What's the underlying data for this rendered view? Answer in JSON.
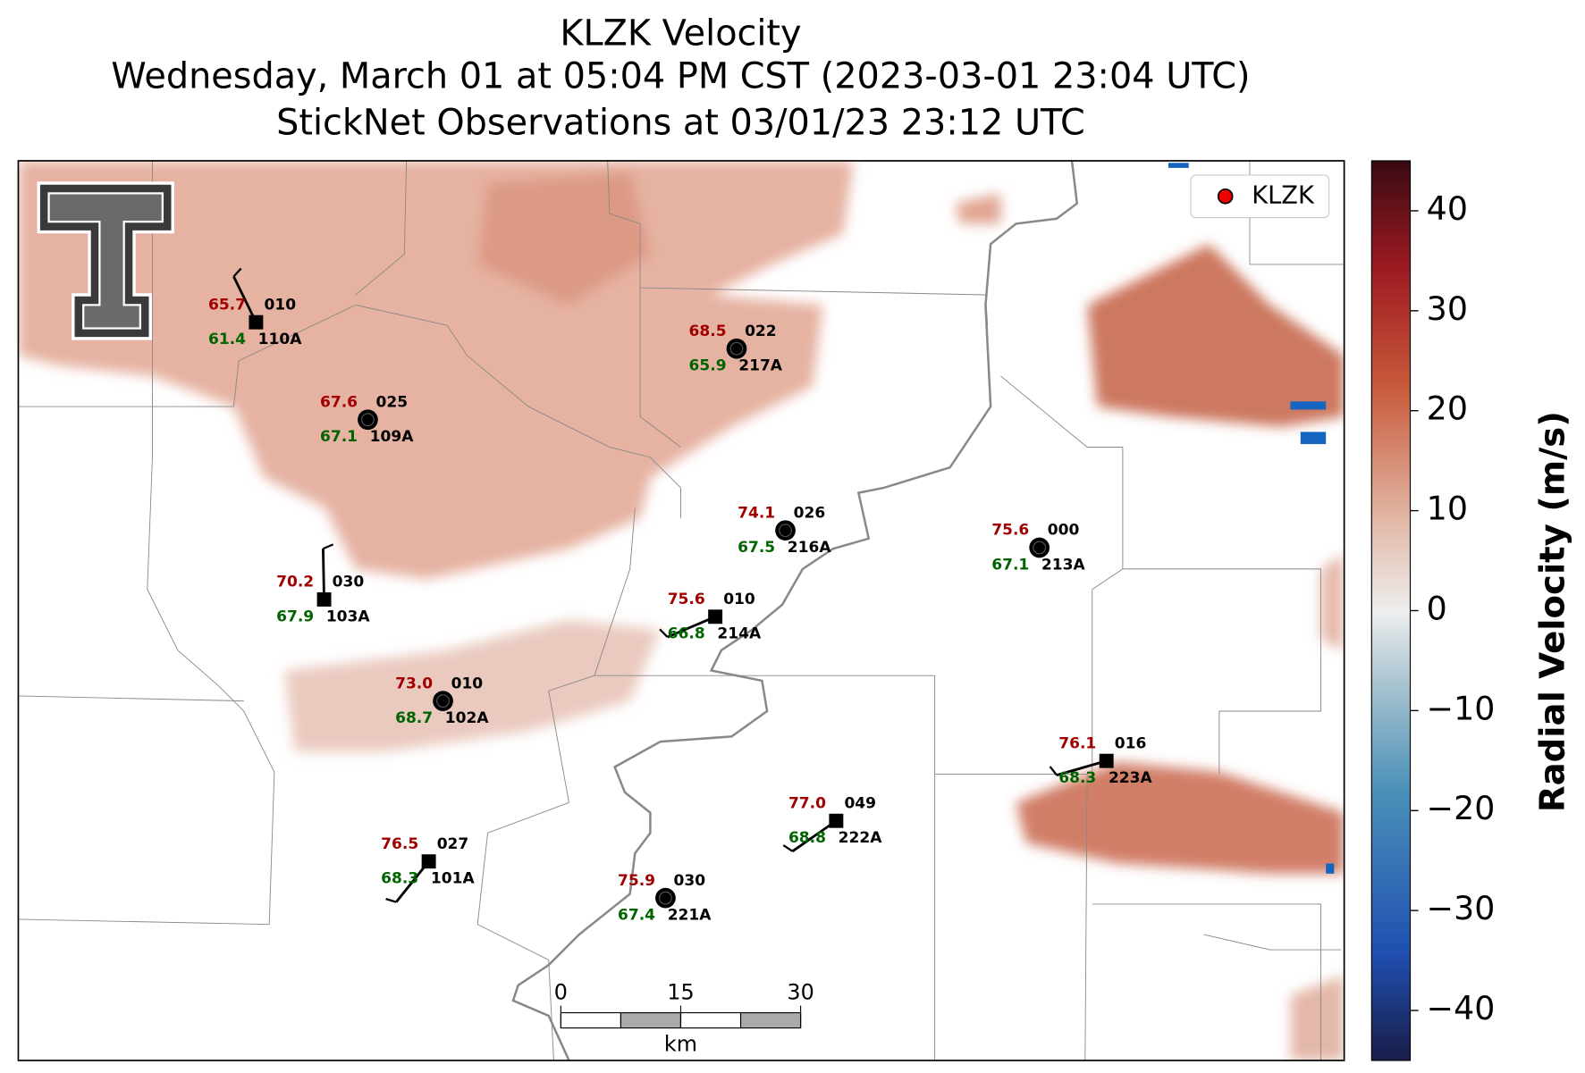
{
  "header": {
    "title_lines": [
      "KLZK Velocity",
      "Wednesday, March 01 at 05:04 PM CST (2023-03-01 23:04 UTC)",
      "StickNet Observations at 03/01/23 23:12 UTC"
    ]
  },
  "legend": {
    "label": "KLZK"
  },
  "scale_bar": {
    "ticks": [
      0,
      15,
      30
    ],
    "unit": "km"
  },
  "colorbar": {
    "label": "Radial Velocity (m/s)",
    "lim": [
      -45,
      45
    ],
    "ticks": [
      40,
      30,
      20,
      10,
      0,
      {
        "value": -10,
        "label": "−10"
      },
      {
        "value": -20,
        "label": "−20"
      },
      {
        "value": -30,
        "label": "−30"
      },
      {
        "value": -40,
        "label": "−40"
      }
    ]
  },
  "stations": [
    {
      "id": "110A",
      "temperature": "65.7",
      "dewpoint": "61.4",
      "wind_direction": "010"
    },
    {
      "id": "109A",
      "temperature": "67.6",
      "dewpoint": "67.1",
      "wind_direction": "025"
    },
    {
      "id": "217A",
      "temperature": "68.5",
      "dewpoint": "65.9",
      "wind_direction": "022"
    },
    {
      "id": "216A",
      "temperature": "74.1",
      "dewpoint": "67.5",
      "wind_direction": "026"
    },
    {
      "id": "213A",
      "temperature": "75.6",
      "dewpoint": "67.1",
      "wind_direction": "000"
    },
    {
      "id": "103A",
      "temperature": "70.2",
      "dewpoint": "67.9",
      "wind_direction": "030"
    },
    {
      "id": "214A",
      "temperature": "75.6",
      "dewpoint": "66.8",
      "wind_direction": "010"
    },
    {
      "id": "102A",
      "temperature": "73.0",
      "dewpoint": "68.7",
      "wind_direction": "010"
    },
    {
      "id": "223A",
      "temperature": "76.1",
      "dewpoint": "68.3",
      "wind_direction": "016"
    },
    {
      "id": "222A",
      "temperature": "77.0",
      "dewpoint": "68.8",
      "wind_direction": "049"
    },
    {
      "id": "101A",
      "temperature": "76.5",
      "dewpoint": "68.3",
      "wind_direction": "027"
    },
    {
      "id": "221A",
      "temperature": "75.9",
      "dewpoint": "67.4",
      "wind_direction": "030"
    }
  ]
}
